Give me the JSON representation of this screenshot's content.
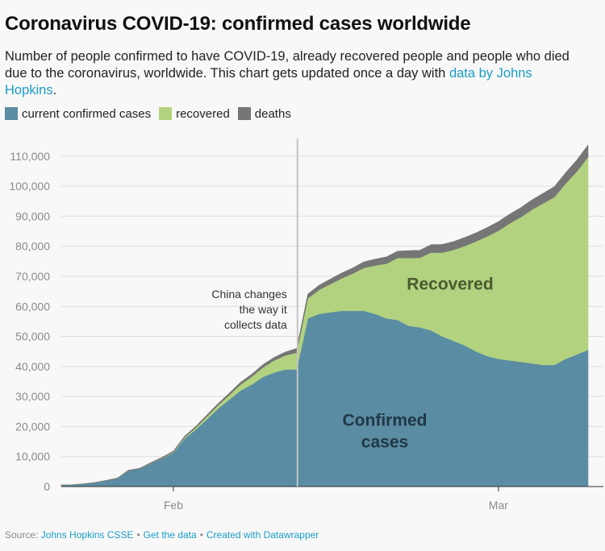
{
  "title": "Coronavirus COVID-19: confirmed cases worldwide",
  "subtitle_text": "Number of people confirmed to have COVID-19, already recovered people and people who died due to the coronavirus, worldwide. This chart gets updated once a day with ",
  "subtitle_link": "data by Johns Hopkins",
  "subtitle_end": ".",
  "colors": {
    "confirmed": "#5a8ca3",
    "recovered": "#b2d27f",
    "deaths": "#767676",
    "link": "#1b9dc6"
  },
  "legend": [
    {
      "label": "current confirmed cases",
      "color": "#5a8ca3"
    },
    {
      "label": "recovered",
      "color": "#b2d27f"
    },
    {
      "label": "deaths",
      "color": "#767676"
    }
  ],
  "footer": {
    "source_prefix": "Source: ",
    "source_link": "Johns Hopkins CSSE",
    "get_data": "Get the data",
    "created_with": "Created with Datawrapper",
    "separator": "•"
  },
  "chart_data": {
    "type": "area",
    "stacked": true,
    "title": "Coronavirus COVID-19: confirmed cases worldwide",
    "x_tick_labels": [
      "Feb",
      "Mar"
    ],
    "y_ticks": [
      0,
      10000,
      20000,
      30000,
      40000,
      50000,
      60000,
      70000,
      80000,
      90000,
      100000,
      110000
    ],
    "y_tick_labels": [
      "0",
      "10,000",
      "20,000",
      "30,000",
      "40,000",
      "50,000",
      "60,000",
      "70,000",
      "80,000",
      "90,000",
      "100,000",
      "110,000"
    ],
    "ylim": [
      0,
      118000
    ],
    "grid": true,
    "legend_position": "top",
    "dates": [
      "2020-01-22",
      "2020-01-23",
      "2020-01-24",
      "2020-01-25",
      "2020-01-26",
      "2020-01-27",
      "2020-01-28",
      "2020-01-29",
      "2020-01-30",
      "2020-01-31",
      "2020-02-01",
      "2020-02-02",
      "2020-02-03",
      "2020-02-04",
      "2020-02-05",
      "2020-02-06",
      "2020-02-07",
      "2020-02-08",
      "2020-02-09",
      "2020-02-10",
      "2020-02-11",
      "2020-02-12",
      "2020-02-13",
      "2020-02-14",
      "2020-02-15",
      "2020-02-16",
      "2020-02-17",
      "2020-02-18",
      "2020-02-19",
      "2020-02-20",
      "2020-02-21",
      "2020-02-22",
      "2020-02-23",
      "2020-02-24",
      "2020-02-25",
      "2020-02-26",
      "2020-02-27",
      "2020-02-28",
      "2020-02-29",
      "2020-03-01",
      "2020-03-02",
      "2020-03-03",
      "2020-03-04",
      "2020-03-05",
      "2020-03-06",
      "2020-03-07",
      "2020-03-08",
      "2020-03-09"
    ],
    "series": [
      {
        "name": "current confirmed cases",
        "values": [
          500,
          600,
          900,
          1300,
          2000,
          2700,
          5300,
          5900,
          7700,
          9400,
          11300,
          16000,
          19000,
          22500,
          26000,
          29000,
          32000,
          34000,
          36500,
          38000,
          39000,
          39000,
          56000,
          57500,
          58000,
          58500,
          58500,
          58500,
          57500,
          56000,
          55500,
          53500,
          53000,
          52000,
          50000,
          48500,
          47000,
          45000,
          43500,
          42500,
          42000,
          41500,
          41000,
          40500,
          40500,
          42500,
          44000,
          45500
        ]
      },
      {
        "name": "recovered",
        "values": [
          0,
          0,
          0,
          0,
          0,
          0,
          0,
          0,
          100,
          100,
          200,
          400,
          600,
          900,
          1100,
          1500,
          2000,
          2600,
          3200,
          4000,
          4700,
          5600,
          6700,
          8000,
          9400,
          10800,
          12400,
          14300,
          16100,
          18200,
          20600,
          22600,
          23200,
          25900,
          27900,
          30300,
          33100,
          36600,
          39800,
          42700,
          45600,
          48200,
          51200,
          53800,
          55900,
          58400,
          60900,
          64200
        ]
      },
      {
        "name": "deaths",
        "values": [
          20,
          30,
          40,
          60,
          80,
          130,
          170,
          200,
          210,
          260,
          300,
          360,
          420,
          490,
          560,
          630,
          720,
          810,
          910,
          1010,
          1110,
          1370,
          1380,
          1520,
          1660,
          1770,
          1870,
          2000,
          2120,
          2240,
          2250,
          2450,
          2470,
          2630,
          2710,
          2770,
          2810,
          2860,
          2920,
          2990,
          3080,
          3160,
          3250,
          3350,
          3460,
          3560,
          3800,
          4000
        ]
      }
    ],
    "annotations": [
      {
        "date": "2020-02-12",
        "lines": [
          "China changes",
          "the way it",
          "collects data"
        ]
      }
    ],
    "area_labels": [
      {
        "series": "recovered",
        "lines": [
          "Recovered"
        ]
      },
      {
        "series": "current confirmed cases",
        "lines": [
          "Confirmed",
          "cases"
        ]
      }
    ]
  }
}
